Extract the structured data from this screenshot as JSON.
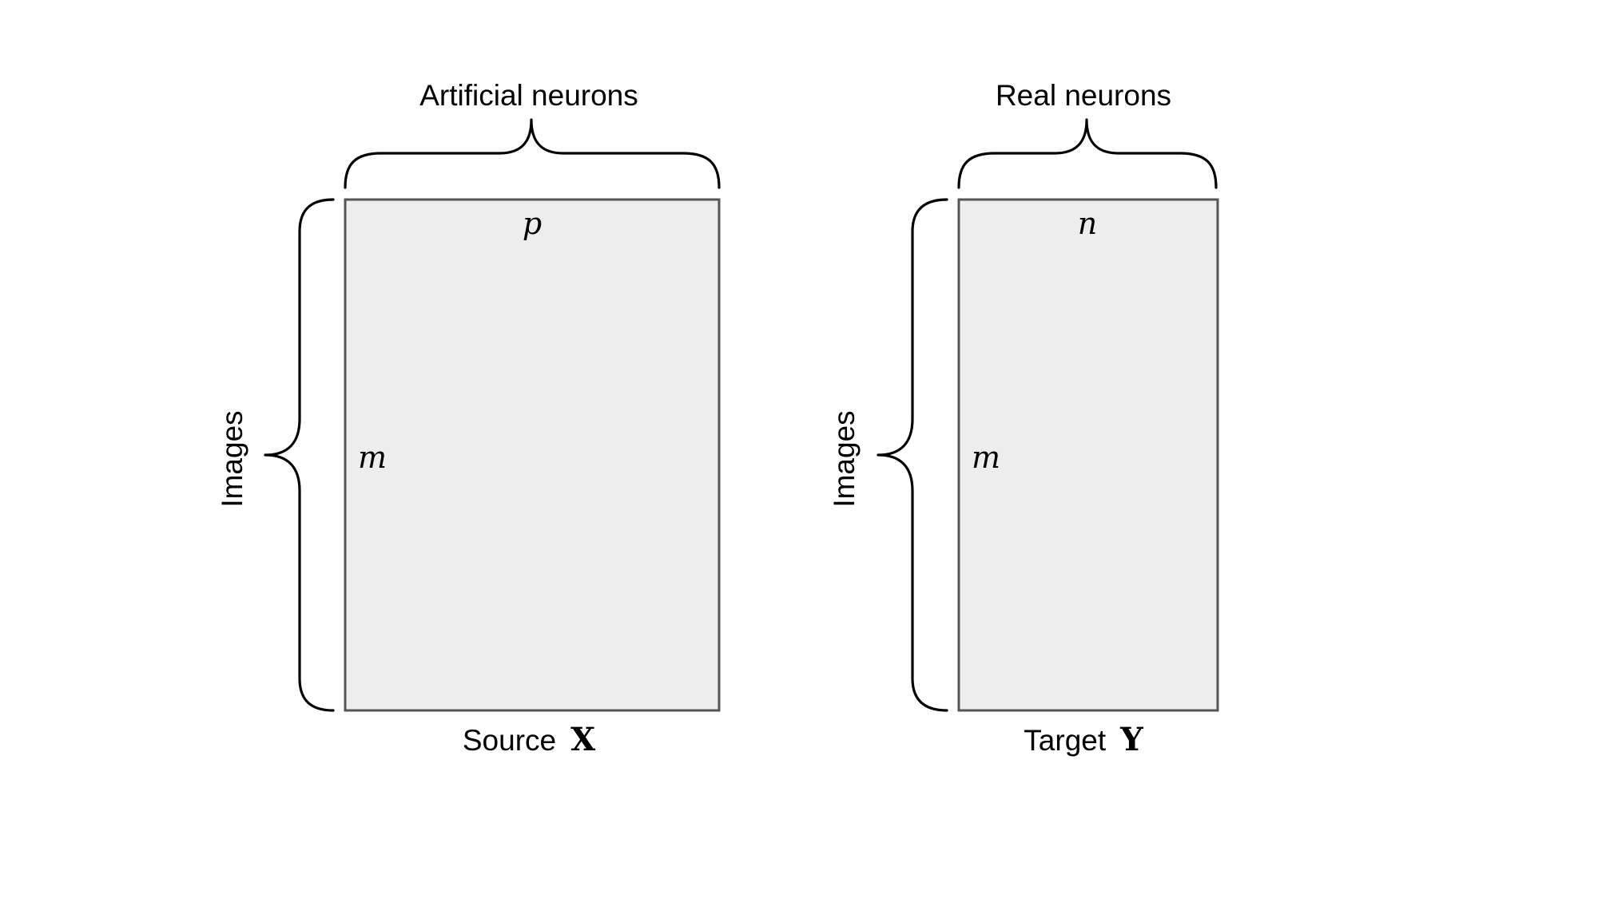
{
  "left_matrix": {
    "top_label": "Artificial neurons",
    "side_label": "Images",
    "col_symbol": "p",
    "row_symbol": "m",
    "caption_word": "Source",
    "caption_symbol": "X"
  },
  "right_matrix": {
    "top_label": "Real neurons",
    "side_label": "Images",
    "col_symbol": "n",
    "row_symbol": "m",
    "caption_word": "Target",
    "caption_symbol": "Y"
  },
  "colors": {
    "matrix_fill": "#ededed",
    "matrix_border": "#555555",
    "brace": "#000000"
  }
}
